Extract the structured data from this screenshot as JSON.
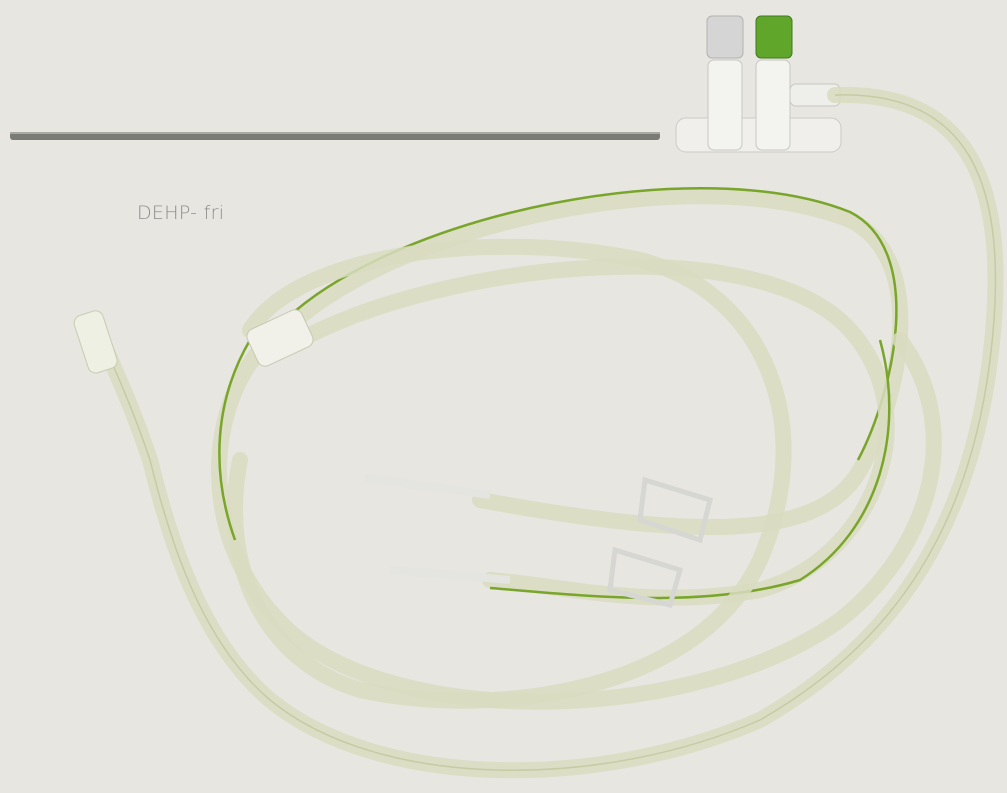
{
  "label": "DEHP- fri"
}
